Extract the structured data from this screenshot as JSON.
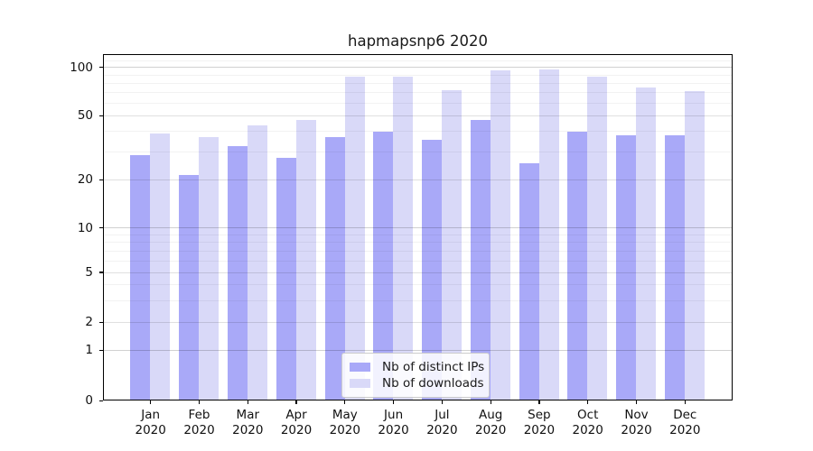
{
  "title": "hapmapsnp6 2020",
  "chart_data": {
    "type": "bar",
    "title": "hapmapsnp6 2020",
    "categories": [
      "Jan 2020",
      "Feb 2020",
      "Mar 2020",
      "Apr 2020",
      "May 2020",
      "Jun 2020",
      "Jul 2020",
      "Aug 2020",
      "Sep 2020",
      "Oct 2020",
      "Nov 2020",
      "Dec 2020"
    ],
    "series": [
      {
        "name": "Nb of distinct IPs",
        "color": "#a9a9f8",
        "values": [
          28,
          21,
          32,
          27,
          36,
          39,
          35,
          46,
          25,
          39,
          37,
          37
        ]
      },
      {
        "name": "Nb of downloads",
        "color": "#d9d9f8",
        "values": [
          38,
          36,
          43,
          46,
          86,
          86,
          71,
          94,
          96,
          86,
          74,
          70
        ]
      }
    ],
    "xlabel": "",
    "ylabel": "",
    "yscale": "symlog",
    "yticks": [
      0,
      1,
      2,
      5,
      10,
      20,
      50,
      100
    ],
    "ylim": [
      0,
      119
    ],
    "grid": true,
    "legend_position": "inside lower-center"
  }
}
